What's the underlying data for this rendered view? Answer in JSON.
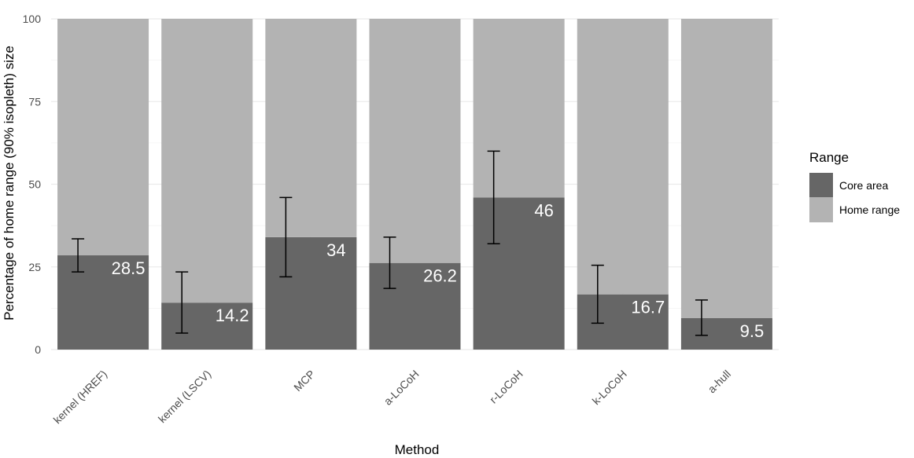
{
  "chart_data": {
    "type": "bar",
    "stacked": true,
    "xlabel": "Method",
    "ylabel": "Percentage of home range (90% isopleth) size",
    "ylim": [
      0,
      100
    ],
    "yticks": [
      0,
      25,
      50,
      75,
      100
    ],
    "categories": [
      "kernel (HREF)",
      "kernel (LSCV)",
      "MCP",
      "a-LoCoH",
      "r-LoCoH",
      "k-LoCoH",
      "a-hull"
    ],
    "series": [
      {
        "name": "Core area",
        "color": "#666666",
        "values": [
          28.5,
          14.2,
          34,
          26.2,
          46,
          16.7,
          9.5
        ],
        "labels": [
          "28.5",
          "14.2",
          "34",
          "26.2",
          "46",
          "16.7",
          "9.5"
        ],
        "error_low": [
          23.5,
          5,
          22,
          18.5,
          32,
          8,
          4.3
        ],
        "error_high": [
          33.5,
          23.5,
          46,
          34,
          60,
          25.5,
          15
        ]
      },
      {
        "name": "Home range",
        "color": "#b3b3b3",
        "values": [
          71.5,
          85.8,
          66,
          73.8,
          54,
          83.3,
          90.5
        ]
      }
    ],
    "legend": {
      "title": "Range",
      "position": "right"
    },
    "grid": true,
    "theme": "minimal"
  }
}
